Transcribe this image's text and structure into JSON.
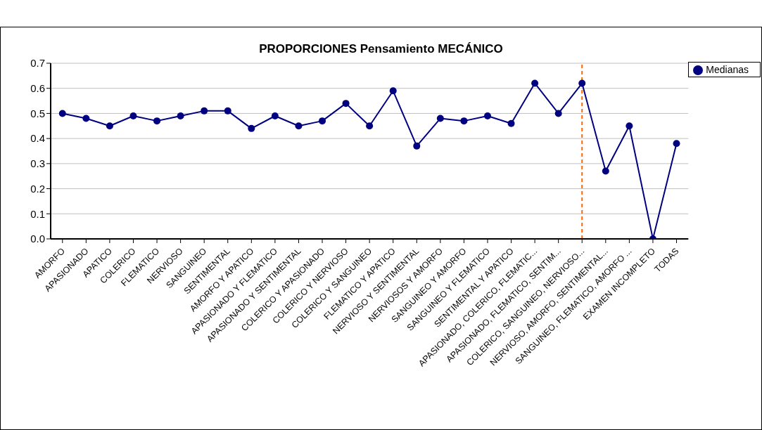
{
  "chart_data": {
    "type": "line",
    "title": "PROPORCIONES Pensamiento MECÁNICO",
    "categories": [
      "AMORFO",
      "APASIONADO",
      "APATICO",
      "COLERICO",
      "FLEMATICO",
      "NERVIOSO",
      "SANGUINEO",
      "SENTIMENTAL",
      "AMORFO Y APATICO",
      "APASIONADO Y FLEMATICO",
      "APASIONADO Y SENTIMENTAL",
      "COLERICO Y APASIONADO",
      "COLERICO Y NERVIOSO",
      "COLERICO Y SANGUINEO",
      "FLEMATICO Y APATICO",
      "NERVIOSO Y SENTIMENTAL",
      "NERVIOSOS Y AMORFO",
      "SANGUINEO Y AMORFO",
      "SANGUINEO Y FLEMATICO",
      "SENTIMENTAL Y APATICO",
      "APASIONADO, COLERICO, FLEMATIC...",
      "APASIONADO, FLEMATICO, SENTIM...",
      "COLERICO, SANGUINEO, NERVIOSO...",
      "NERVIOSO, AMORFO, SENTIMENTAL...",
      "SANGUINEO, FLEMATICO, AMORFO ...",
      "EXAMEN INCOMPLETO",
      "TODAS"
    ],
    "series": [
      {
        "name": "Medianas",
        "color": "#000080",
        "values": [
          0.5,
          0.48,
          0.45,
          0.49,
          0.47,
          0.49,
          0.51,
          0.51,
          0.44,
          0.49,
          0.45,
          0.47,
          0.54,
          0.45,
          0.59,
          0.37,
          0.48,
          0.47,
          0.49,
          0.46,
          0.62,
          0.5,
          0.62,
          0.27,
          0.45,
          0.0,
          0.38
        ]
      }
    ],
    "ylim": [
      0,
      0.7
    ],
    "yticks": [
      {
        "value": 0,
        "label": "0.0"
      },
      {
        "value": 0.1,
        "label": "0.1"
      },
      {
        "value": 0.2,
        "label": "0.2"
      },
      {
        "value": 0.3,
        "label": "0.3"
      },
      {
        "value": 0.4,
        "label": "0.4"
      },
      {
        "value": 0.5,
        "label": "0.5"
      },
      {
        "value": 0.6,
        "label": "0.6"
      },
      {
        "value": 0.7,
        "label": "0.7"
      }
    ],
    "ref_lines": [
      {
        "axis": "x",
        "value": "COLERICO, SANGUINEO, NERVIOSO...",
        "color": "#ff6600",
        "line_style": "dashed"
      }
    ],
    "grid": "y",
    "legend": "top right",
    "marker": "circle",
    "line_style": "solid"
  }
}
